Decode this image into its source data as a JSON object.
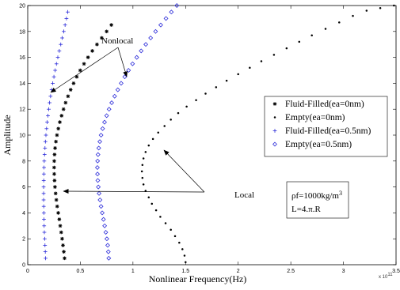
{
  "chart_data": {
    "type": "scatter",
    "xlabel": "Nonlinear Frequency(Hz)",
    "ylabel": "Amplitude",
    "xlim": [
      0,
      3.5
    ],
    "ylim": [
      0,
      20
    ],
    "x_multiplier": "x 10",
    "x_multiplier_exp": "11",
    "x_ticks": [
      "0",
      "0.5",
      "1",
      "1.5",
      "2",
      "2.5",
      "3",
      "3.5"
    ],
    "y_ticks": [
      "0",
      "2",
      "4",
      "6",
      "8",
      "10",
      "12",
      "14",
      "16",
      "18",
      "20"
    ],
    "grid": false,
    "legend_position": "right",
    "series": [
      {
        "name": "Fluid-Filled(ea=0nm)",
        "marker": "star",
        "color": "#000000",
        "x": [
          0.35,
          0.343,
          0.335,
          0.327,
          0.318,
          0.309,
          0.3,
          0.29,
          0.28,
          0.272,
          0.265,
          0.259,
          0.255,
          0.252,
          0.251,
          0.252,
          0.255,
          0.26,
          0.268,
          0.278,
          0.291,
          0.305,
          0.322,
          0.34,
          0.36,
          0.383,
          0.408,
          0.436,
          0.466,
          0.499,
          0.535,
          0.573,
          0.614,
          0.658,
          0.703,
          0.75,
          0.795
        ],
        "y": [
          0.5,
          1.0,
          1.5,
          2.0,
          2.5,
          3.0,
          3.5,
          4.0,
          4.5,
          5.0,
          5.5,
          6.0,
          6.5,
          7.0,
          7.5,
          8.0,
          8.5,
          9.0,
          9.5,
          10.0,
          10.5,
          11.0,
          11.5,
          12.0,
          12.5,
          13.0,
          13.5,
          14.0,
          14.5,
          15.0,
          15.5,
          16.0,
          16.5,
          17.0,
          17.5,
          18.0,
          18.5
        ]
      },
      {
        "name": "Empty(ea=0nm)",
        "marker": "dot",
        "color": "#000000",
        "x": [
          1.5,
          1.49,
          1.47,
          1.44,
          1.4,
          1.36,
          1.31,
          1.26,
          1.22,
          1.18,
          1.15,
          1.12,
          1.1,
          1.09,
          1.085,
          1.09,
          1.1,
          1.12,
          1.15,
          1.19,
          1.24,
          1.3,
          1.36,
          1.43,
          1.51,
          1.6,
          1.69,
          1.79,
          1.89,
          2.0,
          2.11,
          2.22,
          2.34,
          2.46,
          2.58,
          2.7,
          2.83,
          2.96,
          3.09,
          3.22,
          3.35,
          3.48
        ],
        "y": [
          0.2,
          0.7,
          1.2,
          1.7,
          2.2,
          2.7,
          3.2,
          3.7,
          4.2,
          4.7,
          5.2,
          5.7,
          6.2,
          6.7,
          7.2,
          7.7,
          8.2,
          8.7,
          9.2,
          9.7,
          10.2,
          10.7,
          11.2,
          11.7,
          12.2,
          12.7,
          13.2,
          13.7,
          14.2,
          14.7,
          15.2,
          15.7,
          16.2,
          16.7,
          17.2,
          17.7,
          18.2,
          18.7,
          19.2,
          19.6,
          19.8,
          20.0
        ]
      },
      {
        "name": "Fluid-Filled(ea=0.5nm)",
        "marker": "plus",
        "color": "#2b2bd9",
        "x": [
          0.17,
          0.167,
          0.164,
          0.161,
          0.158,
          0.156,
          0.154,
          0.153,
          0.152,
          0.151,
          0.151,
          0.151,
          0.152,
          0.153,
          0.155,
          0.157,
          0.16,
          0.164,
          0.168,
          0.173,
          0.179,
          0.185,
          0.192,
          0.2,
          0.208,
          0.217,
          0.227,
          0.238,
          0.249,
          0.261,
          0.273,
          0.286,
          0.3,
          0.314,
          0.328,
          0.342,
          0.355,
          0.368,
          0.38
        ],
        "y": [
          0.5,
          1.0,
          1.5,
          2.0,
          2.5,
          3.0,
          3.5,
          4.0,
          4.5,
          5.0,
          5.5,
          6.0,
          6.5,
          7.0,
          7.5,
          8.0,
          8.5,
          9.0,
          9.5,
          10.0,
          10.5,
          11.0,
          11.5,
          12.0,
          12.5,
          13.0,
          13.5,
          14.0,
          14.5,
          15.0,
          15.5,
          16.0,
          16.5,
          17.0,
          17.5,
          18.0,
          18.5,
          19.0,
          19.5
        ]
      },
      {
        "name": "Empty(ea=0.5nm)",
        "marker": "diamond",
        "color": "#2b2bd9",
        "x": [
          0.77,
          0.766,
          0.76,
          0.752,
          0.742,
          0.731,
          0.72,
          0.708,
          0.697,
          0.687,
          0.678,
          0.671,
          0.666,
          0.663,
          0.662,
          0.664,
          0.668,
          0.675,
          0.685,
          0.697,
          0.712,
          0.73,
          0.75,
          0.773,
          0.798,
          0.826,
          0.856,
          0.888,
          0.922,
          0.958,
          0.996,
          1.036,
          1.078,
          1.122,
          1.168,
          1.215,
          1.264,
          1.314,
          1.365,
          1.417
        ],
        "y": [
          0.5,
          1.0,
          1.5,
          2.0,
          2.5,
          3.0,
          3.5,
          4.0,
          4.5,
          5.0,
          5.5,
          6.0,
          6.5,
          7.0,
          7.5,
          8.0,
          8.5,
          9.0,
          9.5,
          10.0,
          10.5,
          11.0,
          11.5,
          12.0,
          12.5,
          13.0,
          13.5,
          14.0,
          14.5,
          15.0,
          15.5,
          16.0,
          16.5,
          17.0,
          17.5,
          18.0,
          18.5,
          19.0,
          19.5,
          20.0
        ]
      }
    ],
    "annotations": {
      "nonlocal": "Nonlocal",
      "local": "Local",
      "param_line1": "ρf=1000kg/m",
      "param_line1_sup": "3",
      "param_line2": "L=4.π.R"
    }
  }
}
